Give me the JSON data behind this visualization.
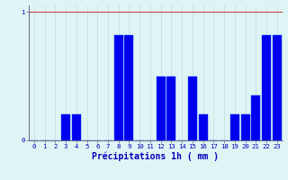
{
  "hours": [
    0,
    1,
    2,
    3,
    4,
    5,
    6,
    7,
    8,
    9,
    10,
    11,
    12,
    13,
    14,
    15,
    16,
    17,
    18,
    19,
    20,
    21,
    22,
    23
  ],
  "values": [
    0,
    0,
    0,
    0.2,
    0.2,
    0,
    0,
    0,
    0.82,
    0.82,
    0,
    0,
    0.5,
    0.5,
    0,
    0.5,
    0.2,
    0,
    0,
    0.2,
    0.2,
    0.35,
    0.82,
    0.82
  ],
  "bar_color": "#0000ee",
  "bar_edge_color": "#0044ff",
  "background_color": "#dff4f4",
  "grid_color_x": "#c0dde0",
  "grid_color_y": "#cc3333",
  "axis_color": "#666688",
  "text_color": "#0000bb",
  "xlabel": "Précipitations 1h ( mm )",
  "ylim": [
    0,
    1.05
  ],
  "yticks": [
    0,
    1
  ],
  "xlim": [
    -0.5,
    23.5
  ],
  "xlabel_fontsize": 7,
  "tick_fontsize": 5.2
}
